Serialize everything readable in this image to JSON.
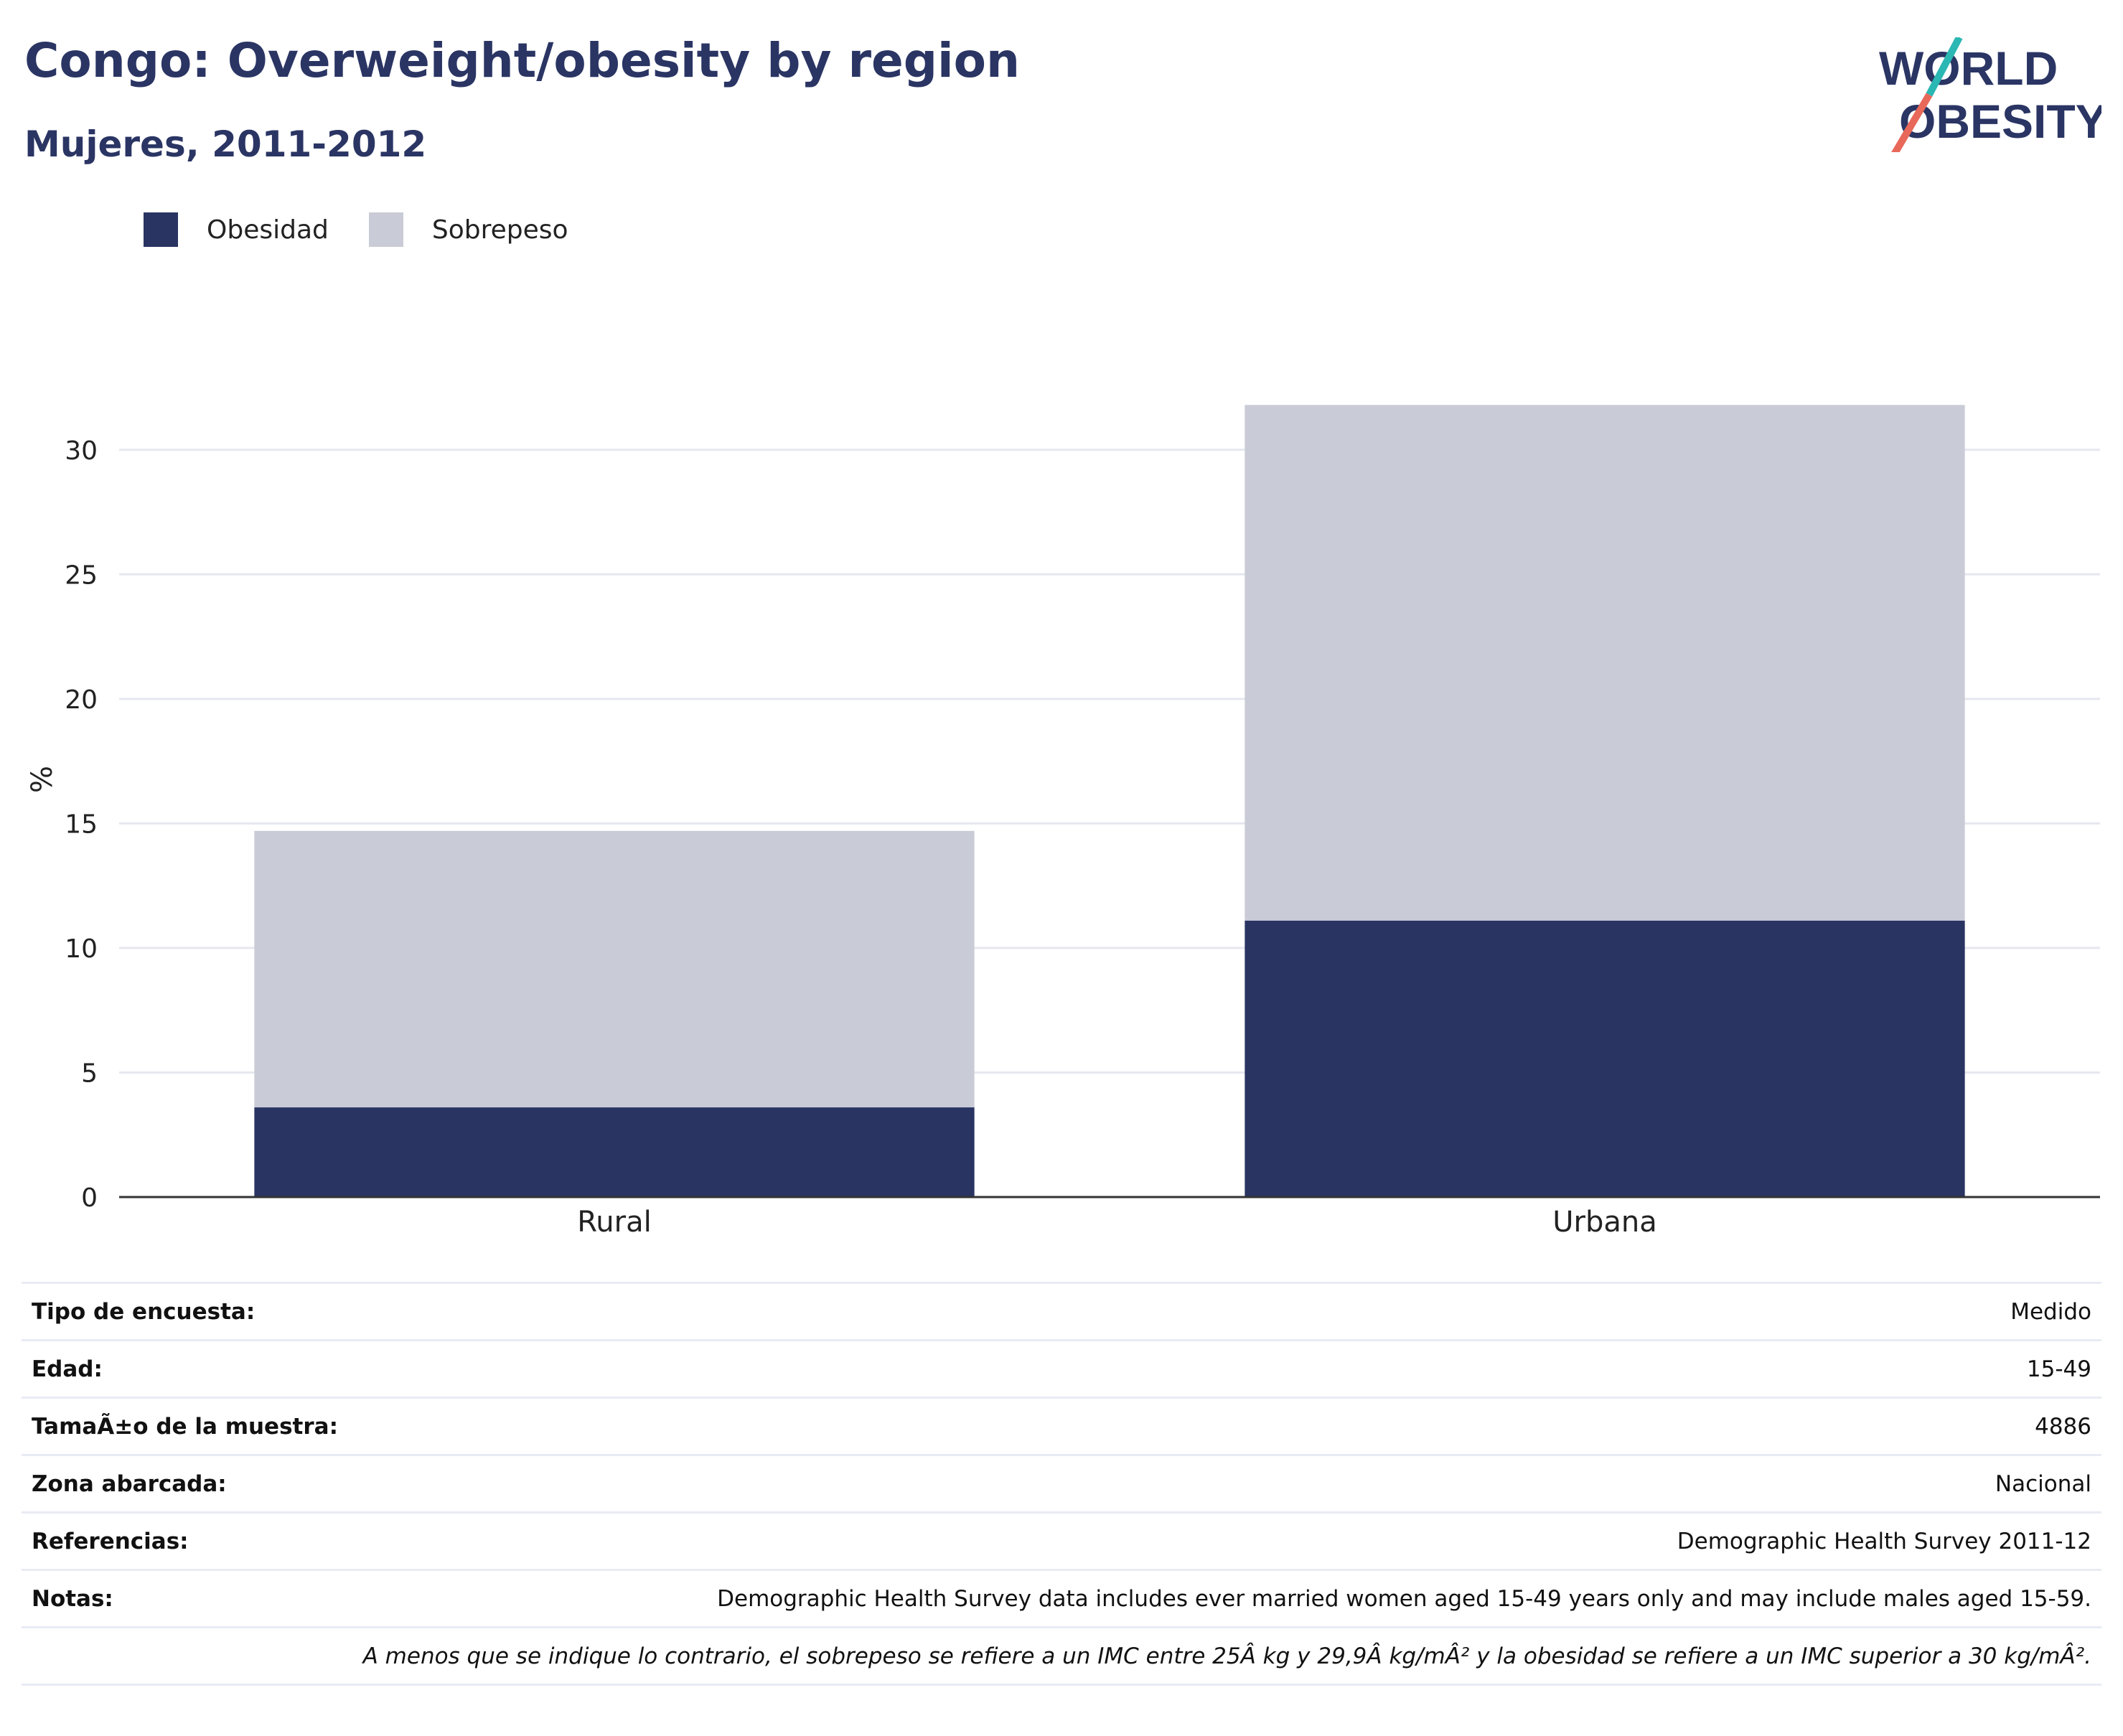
{
  "header": {
    "title": "Congo: Overweight/obesity by region",
    "subtitle": "Mujeres, 2011-2012"
  },
  "logo": {
    "line1": "WORLD",
    "line2": "OBESITY",
    "colors": {
      "text": "#2a3564",
      "slash_top": "#2bb7b3",
      "slash_bottom": "#e8685a"
    }
  },
  "colors": {
    "obesity": "#293462",
    "overweight": "#c9cbd6",
    "grid": "#e6e8ef",
    "axis": "#333333"
  },
  "chart_data": {
    "type": "bar",
    "stacked": true,
    "categories": [
      "Rural",
      "Urbana"
    ],
    "series": [
      {
        "name": "Obesidad",
        "values": [
          3.6,
          11.1
        ],
        "color": "#293462"
      },
      {
        "name": "Sobrepeso",
        "values": [
          11.1,
          20.7
        ],
        "color": "#c9cbd6"
      }
    ],
    "ylabel": "%",
    "xlabel": "",
    "ylim": [
      0,
      32.5
    ],
    "yticks": [
      0,
      5,
      10,
      15,
      20,
      25,
      30
    ],
    "grid": true,
    "legend_position": "top-left"
  },
  "info": {
    "rows": [
      {
        "label": "Tipo de encuesta:",
        "value": "Medido"
      },
      {
        "label": "Edad:",
        "value": "15-49"
      },
      {
        "label": "TamaÃ±o de la muestra:",
        "value": "4886"
      },
      {
        "label": "Zona abarcada:",
        "value": "Nacional"
      },
      {
        "label": "Referencias:",
        "value": "Demographic Health Survey 2011-12"
      },
      {
        "label": "Notas:",
        "value": "Demographic Health Survey data includes ever married women aged 15-49 years only and may include males aged 15-59."
      }
    ],
    "footnote": "A menos que se indique lo contrario, el sobrepeso se refiere a un IMC entre 25Â kg y 29,9Â kg/mÂ² y la obesidad se refiere a un IMC superior a 30 kg/mÂ²."
  }
}
